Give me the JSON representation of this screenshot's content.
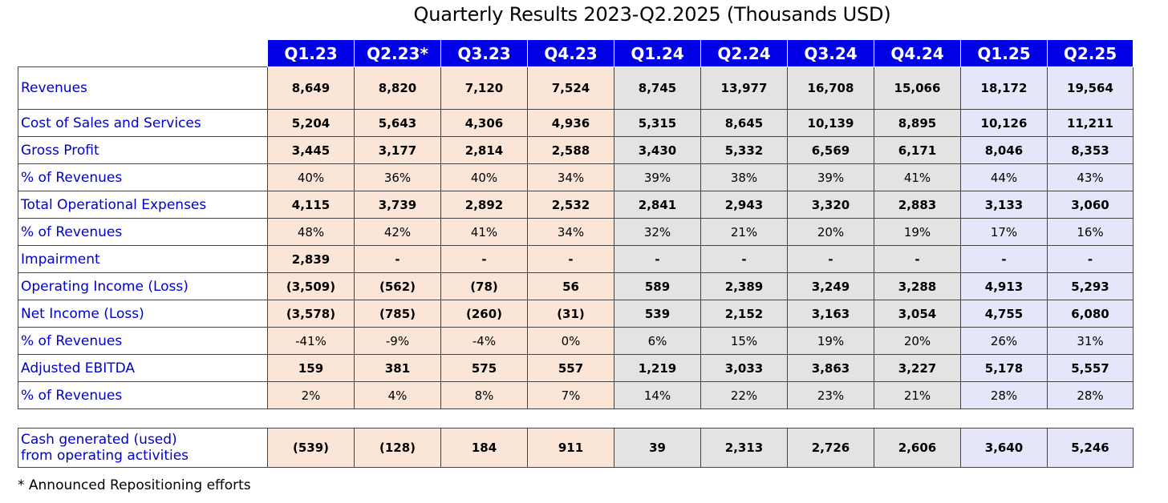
{
  "chart_data": {
    "type": "table",
    "title": "Quarterly Results 2023-Q2.2025 (Thousands USD)",
    "columns": [
      "Q1.23",
      "Q2.23*",
      "Q3.23",
      "Q4.23",
      "Q1.24",
      "Q2.24",
      "Q3.24",
      "Q4.24",
      "Q1.25",
      "Q2.25"
    ],
    "column_years": [
      "2023",
      "2023",
      "2023",
      "2023",
      "2024",
      "2024",
      "2024",
      "2024",
      "2025",
      "2025"
    ],
    "rows": [
      {
        "label": "Revenues",
        "bold": true,
        "cells": [
          "8,649",
          "8,820",
          "7,120",
          "7,524",
          "8,745",
          "13,977",
          "16,708",
          "15,066",
          "18,172",
          "19,564"
        ]
      },
      {
        "label": "Cost of Sales and Services",
        "bold": true,
        "cells": [
          "5,204",
          "5,643",
          "4,306",
          "4,936",
          "5,315",
          "8,645",
          "10,139",
          "8,895",
          "10,126",
          "11,211"
        ]
      },
      {
        "label": "Gross Profit",
        "bold": true,
        "cells": [
          "3,445",
          "3,177",
          "2,814",
          "2,588",
          "3,430",
          "5,332",
          "6,569",
          "6,171",
          "8,046",
          "8,353"
        ]
      },
      {
        "label": "% of Revenues",
        "bold": false,
        "cells": [
          "40%",
          "36%",
          "40%",
          "34%",
          "39%",
          "38%",
          "39%",
          "41%",
          "44%",
          "43%"
        ]
      },
      {
        "label": "Total Operational Expenses",
        "bold": true,
        "cells": [
          "4,115",
          "3,739",
          "2,892",
          "2,532",
          "2,841",
          "2,943",
          "3,320",
          "2,883",
          "3,133",
          "3,060"
        ]
      },
      {
        "label": "% of Revenues",
        "bold": false,
        "cells": [
          "48%",
          "42%",
          "41%",
          "34%",
          "32%",
          "21%",
          "20%",
          "19%",
          "17%",
          "16%"
        ]
      },
      {
        "label": "Impairment",
        "bold": true,
        "cells": [
          "2,839",
          "-",
          "-",
          "-",
          "-",
          "-",
          "-",
          "-",
          "-",
          "-"
        ]
      },
      {
        "label": "Operating Income (Loss)",
        "bold": true,
        "cells": [
          "(3,509)",
          "(562)",
          "(78)",
          "56",
          "589",
          "2,389",
          "3,249",
          "3,288",
          "4,913",
          "5,293"
        ]
      },
      {
        "label": "Net Income (Loss)",
        "bold": true,
        "cells": [
          "(3,578)",
          "(785)",
          "(260)",
          "(31)",
          "539",
          "2,152",
          "3,163",
          "3,054",
          "4,755",
          "6,080"
        ]
      },
      {
        "label": "% of Revenues",
        "bold": false,
        "cells": [
          "-41%",
          "-9%",
          "-4%",
          "0%",
          "6%",
          "15%",
          "19%",
          "20%",
          "26%",
          "31%"
        ]
      },
      {
        "label": "Adjusted EBITDA",
        "bold": true,
        "cells": [
          "159",
          "381",
          "575",
          "557",
          "1,219",
          "3,033",
          "3,863",
          "3,227",
          "5,178",
          "5,557"
        ]
      },
      {
        "label": "% of Revenues",
        "bold": false,
        "cells": [
          "2%",
          "4%",
          "8%",
          "7%",
          "14%",
          "22%",
          "23%",
          "21%",
          "28%",
          "28%"
        ]
      }
    ],
    "cash_row": {
      "label_line1": "Cash generated (used)",
      "label_line2": "from operating activities",
      "cells": [
        "(539)",
        "(128)",
        "184",
        "911",
        "39",
        "2,313",
        "2,726",
        "2,606",
        "3,640",
        "5,246"
      ]
    },
    "footnote": "* Announced Repositioning efforts"
  },
  "colors": {
    "header_bg": "#0000e6",
    "label_text": "#0000cc",
    "year_2023_bg": "#fbe5d6",
    "year_2024_bg": "#e3e3e3",
    "year_2025_bg": "#e6e6fa"
  }
}
